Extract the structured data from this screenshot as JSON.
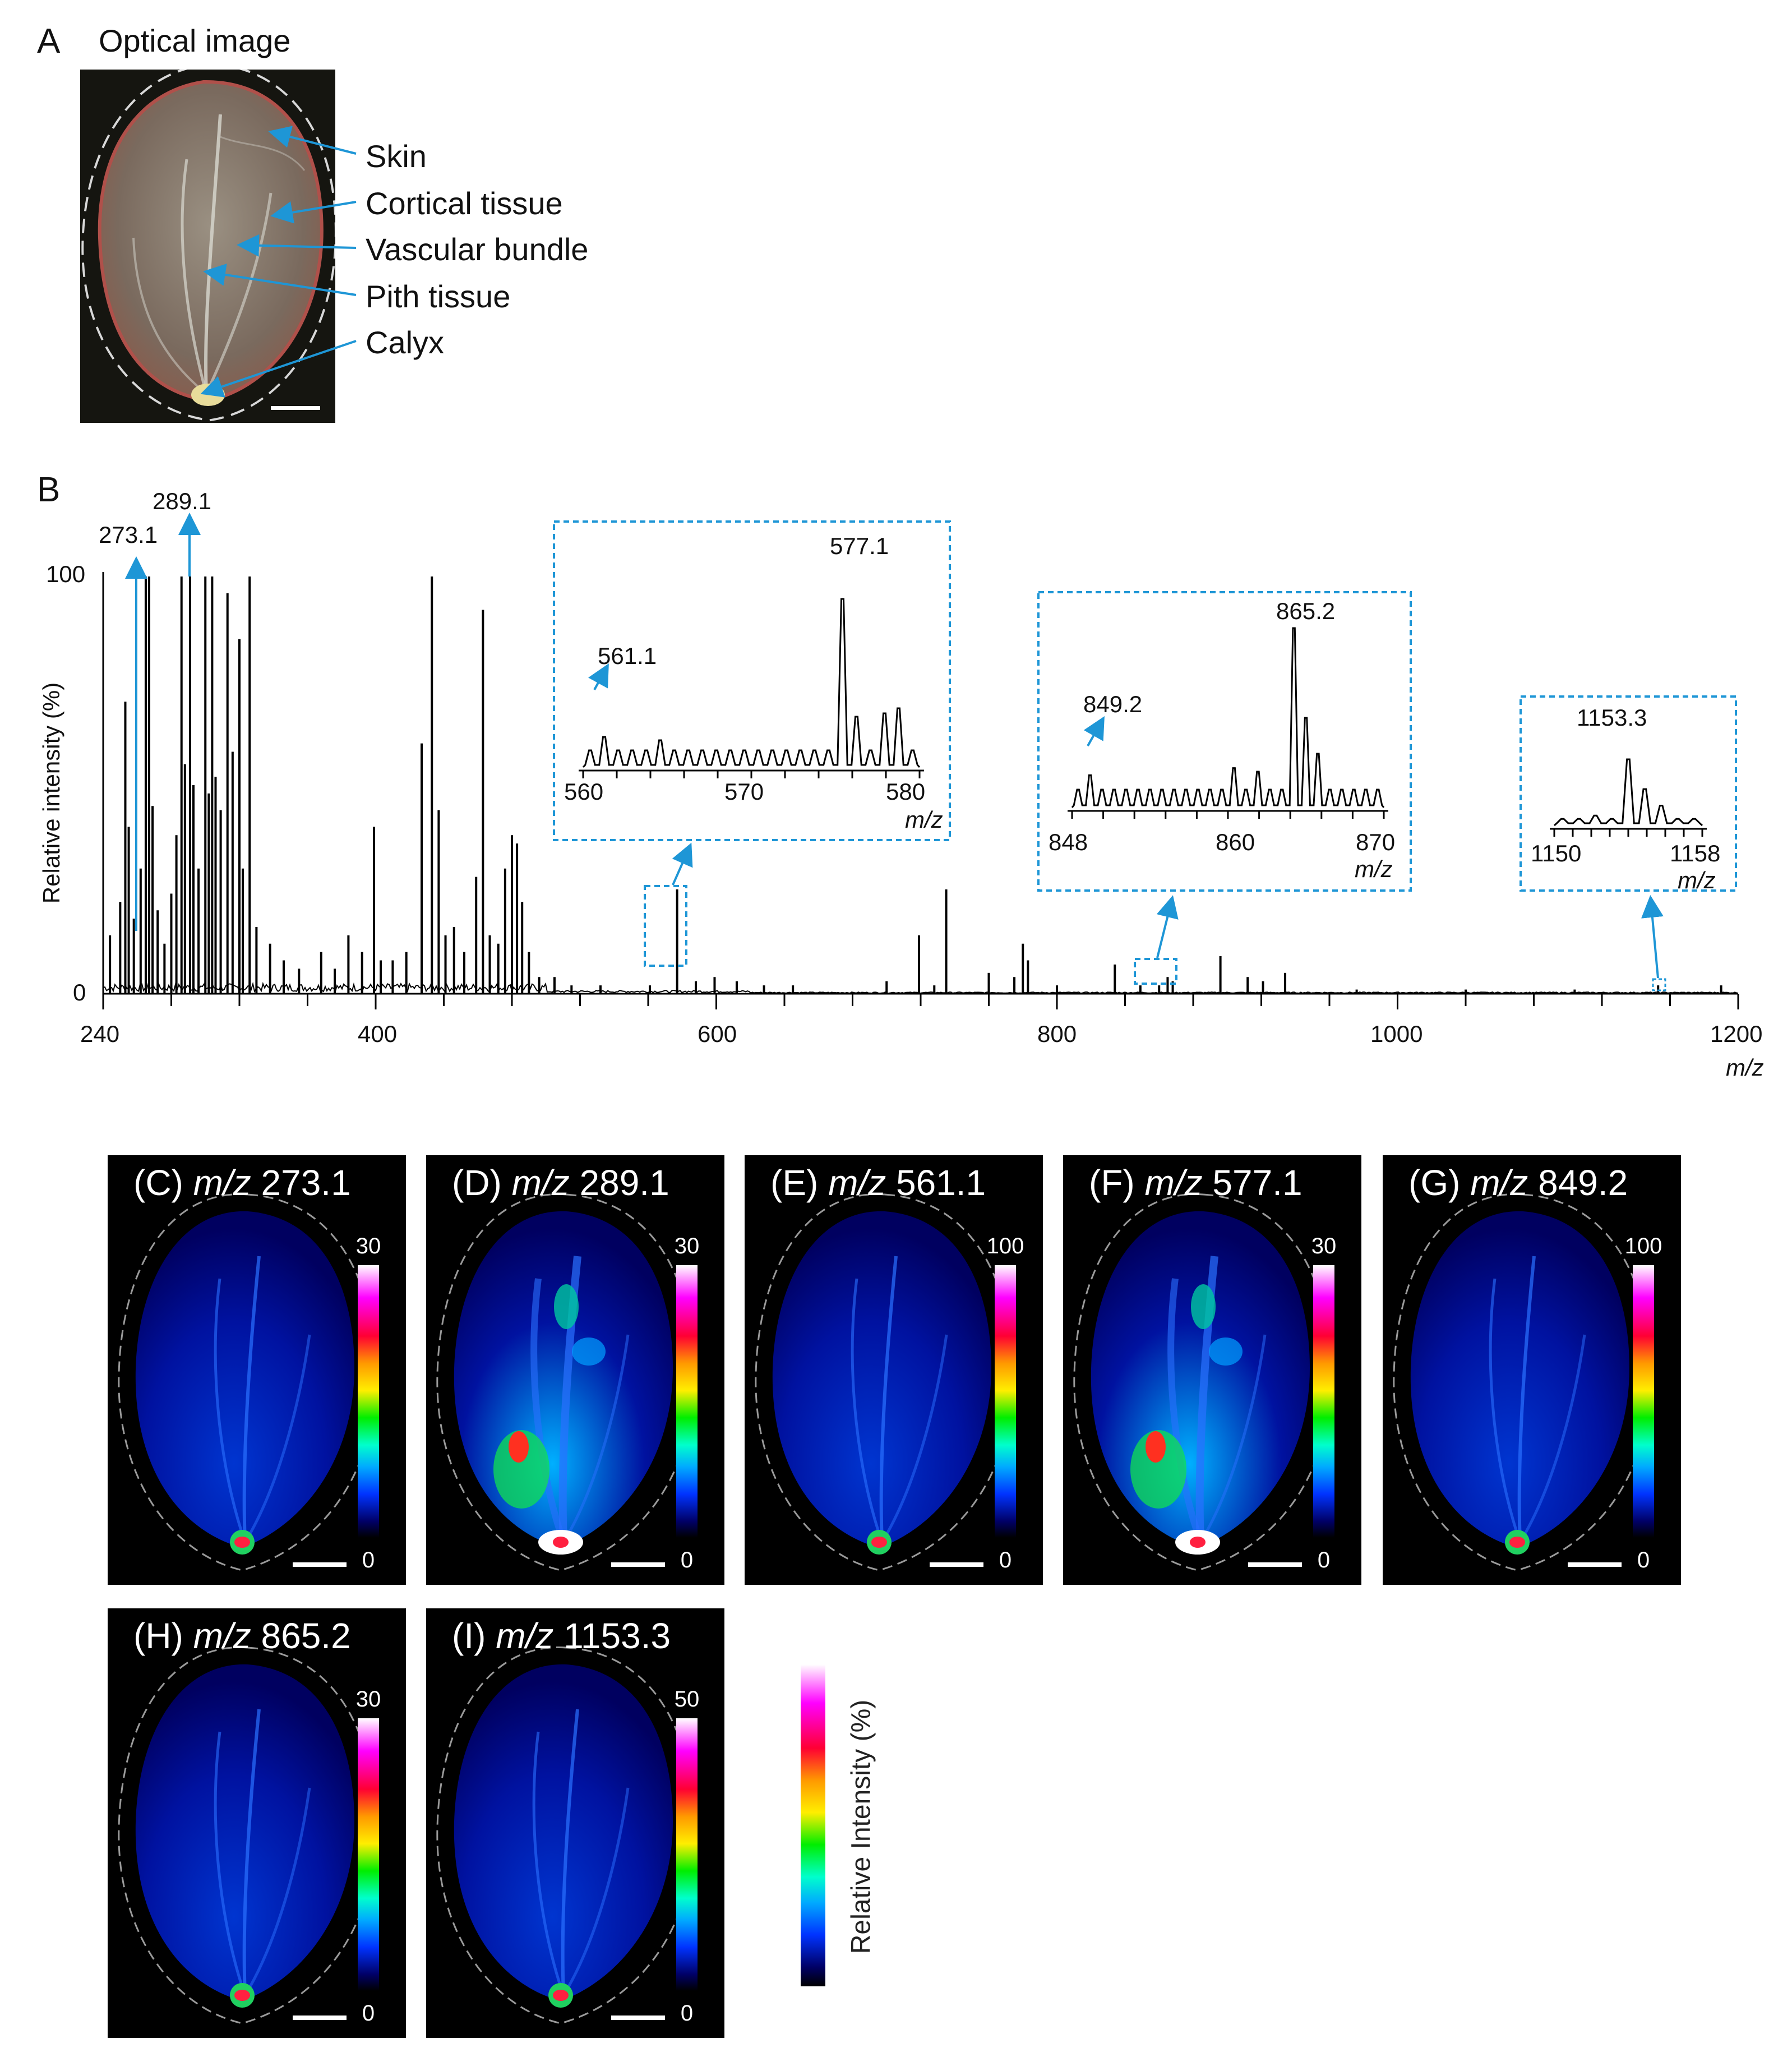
{
  "panel_a": {
    "letter": "A",
    "title": "Optical image",
    "labels": [
      "Skin",
      "Cortical tissue",
      "Vascular bundle",
      "Pith tissue",
      "Calyx"
    ]
  },
  "panel_b": {
    "letter": "B",
    "peak_labels": {
      "p273": "273.1",
      "p289": "289.1"
    },
    "ylabel": "Relative intensity (%)",
    "xlabel": "m/z",
    "y_ticks": [
      "100",
      "0"
    ],
    "x_ticks": [
      "240",
      "400",
      "600",
      "800",
      "1000",
      "1200"
    ],
    "insets": [
      {
        "range": [
          560,
          580
        ],
        "ticks": [
          "560",
          "570",
          "580"
        ],
        "labels": [
          "561.1",
          "577.1"
        ],
        "xlabel": "m/z"
      },
      {
        "range": [
          848,
          870
        ],
        "ticks": [
          "848",
          "860",
          "870"
        ],
        "labels": [
          "849.2",
          "865.2"
        ],
        "xlabel": "m/z"
      },
      {
        "range": [
          1150,
          1158
        ],
        "ticks": [
          "1150",
          "1158"
        ],
        "labels": [
          "1153.3"
        ],
        "xlabel": "m/z"
      }
    ]
  },
  "chart_data": {
    "type": "line",
    "title": "",
    "xlabel": "m/z",
    "ylabel": "Relative intensity (%)",
    "xlim": [
      240,
      1200
    ],
    "ylim": [
      0,
      100
    ],
    "grid": false,
    "peaks": [
      [
        244,
        14
      ],
      [
        250,
        22
      ],
      [
        253,
        70
      ],
      [
        255,
        40
      ],
      [
        258,
        18
      ],
      [
        262,
        30
      ],
      [
        265,
        100
      ],
      [
        267,
        100
      ],
      [
        269,
        45
      ],
      [
        272,
        20
      ],
      [
        276,
        12
      ],
      [
        280,
        24
      ],
      [
        283,
        38
      ],
      [
        286,
        100
      ],
      [
        288,
        55
      ],
      [
        291,
        100
      ],
      [
        293,
        50
      ],
      [
        296,
        30
      ],
      [
        300,
        100
      ],
      [
        302,
        48
      ],
      [
        304,
        100
      ],
      [
        306,
        52
      ],
      [
        309,
        44
      ],
      [
        313,
        96
      ],
      [
        316,
        58
      ],
      [
        320,
        85
      ],
      [
        322,
        30
      ],
      [
        326,
        100
      ],
      [
        330,
        16
      ],
      [
        338,
        12
      ],
      [
        346,
        8
      ],
      [
        355,
        6
      ],
      [
        368,
        10
      ],
      [
        376,
        6
      ],
      [
        384,
        14
      ],
      [
        392,
        10
      ],
      [
        399,
        40
      ],
      [
        403,
        8
      ],
      [
        410,
        8
      ],
      [
        418,
        10
      ],
      [
        427,
        60
      ],
      [
        433,
        100
      ],
      [
        437,
        44
      ],
      [
        441,
        14
      ],
      [
        446,
        16
      ],
      [
        452,
        10
      ],
      [
        459,
        28
      ],
      [
        463,
        92
      ],
      [
        467,
        14
      ],
      [
        472,
        12
      ],
      [
        476,
        30
      ],
      [
        480,
        38
      ],
      [
        483,
        36
      ],
      [
        486,
        22
      ],
      [
        490,
        10
      ],
      [
        496,
        4
      ],
      [
        505,
        4
      ],
      [
        515,
        2
      ],
      [
        532,
        2
      ],
      [
        561,
        2
      ],
      [
        577,
        25
      ],
      [
        588,
        3
      ],
      [
        599,
        4
      ],
      [
        612,
        3
      ],
      [
        628,
        2
      ],
      [
        645,
        2
      ],
      [
        700,
        3
      ],
      [
        719,
        14
      ],
      [
        728,
        2
      ],
      [
        735,
        25
      ],
      [
        760,
        5
      ],
      [
        775,
        4
      ],
      [
        780,
        12
      ],
      [
        783,
        8
      ],
      [
        800,
        2
      ],
      [
        834,
        7
      ],
      [
        849,
        2
      ],
      [
        860,
        2
      ],
      [
        865,
        4
      ],
      [
        868,
        3
      ],
      [
        896,
        9
      ],
      [
        912,
        4
      ],
      [
        921,
        3
      ],
      [
        934,
        5
      ],
      [
        976,
        1
      ],
      [
        1040,
        1
      ],
      [
        1104,
        1
      ],
      [
        1153,
        2
      ],
      [
        1190,
        2
      ]
    ],
    "annotations": [
      "273.1",
      "289.1"
    ]
  },
  "ims_panels": [
    {
      "letter": "(C)",
      "mz_label": "m/z",
      "mz": "273.1",
      "cb_max": "30",
      "cb_min": "0"
    },
    {
      "letter": "(D)",
      "mz_label": "m/z",
      "mz": "289.1",
      "cb_max": "30",
      "cb_min": "0"
    },
    {
      "letter": "(E)",
      "mz_label": "m/z",
      "mz": "561.1",
      "cb_max": "100",
      "cb_min": "0"
    },
    {
      "letter": "(F)",
      "mz_label": "m/z",
      "mz": "577.1",
      "cb_max": "30",
      "cb_min": "0"
    },
    {
      "letter": "(G)",
      "mz_label": "m/z",
      "mz": "849.2",
      "cb_max": "100",
      "cb_min": "0"
    },
    {
      "letter": "(H)",
      "mz_label": "m/z",
      "mz": "865.2",
      "cb_max": "30",
      "cb_min": "0"
    },
    {
      "letter": "(I)",
      "mz_label": "m/z",
      "mz": "1153.3",
      "cb_max": "50",
      "cb_min": "0"
    }
  ],
  "legend_colorbar": {
    "label": "Relative Intensity (%)"
  },
  "colors": {
    "accent": "#1e96d6",
    "panel_bg": "#000000"
  }
}
